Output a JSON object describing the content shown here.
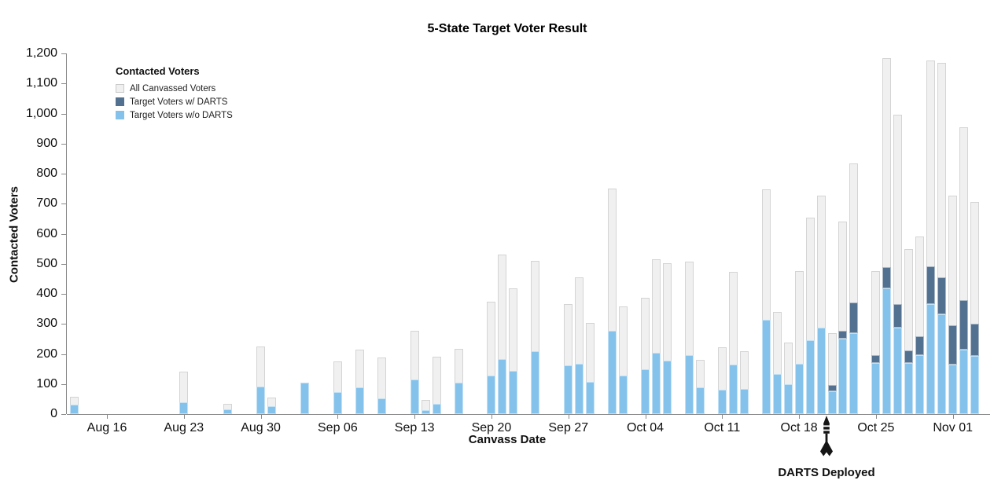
{
  "title": "5-State Target Voter Result",
  "legend": {
    "title": "Contacted Voters",
    "items": [
      {
        "label": "All Canvassed Voters",
        "color": "#f0f0f0",
        "border": "#c9c9c9"
      },
      {
        "label": "Target Voters w/ DARTS",
        "color": "#52708F",
        "border": "#52708F"
      },
      {
        "label": "Target Voters w/o DARTS",
        "color": "#85C2EB",
        "border": "#85C2EB"
      }
    ]
  },
  "y_axis": {
    "title": "Contacted Voters",
    "tick_values": [
      0,
      100,
      200,
      300,
      400,
      500,
      600,
      700,
      800,
      900,
      1000,
      1100,
      1200
    ]
  },
  "x_axis": {
    "title": "Canvass Date",
    "ticks": [
      {
        "day": 0,
        "label": "Aug 16"
      },
      {
        "day": 7,
        "label": "Aug 23"
      },
      {
        "day": 14,
        "label": "Aug 30"
      },
      {
        "day": 21,
        "label": "Sep 06"
      },
      {
        "day": 28,
        "label": "Sep 13"
      },
      {
        "day": 35,
        "label": "Sep 20"
      },
      {
        "day": 42,
        "label": "Sep 27"
      },
      {
        "day": 49,
        "label": "Oct 04"
      },
      {
        "day": 56,
        "label": "Oct 11"
      },
      {
        "day": 63,
        "label": "Oct 18"
      },
      {
        "day": 70,
        "label": "Oct 25"
      },
      {
        "day": 77,
        "label": "Nov 01"
      }
    ]
  },
  "annotation": {
    "label": "DARTS Deployed",
    "day": 65.5,
    "icon": "dart-icon"
  },
  "colors": {
    "all_canvassed_fill": "#f0f0f0",
    "all_canvassed_border": "#d4d4d4",
    "target_with_darts": "#52708F",
    "target_without_darts": "#85C2EB",
    "axis": "#8a8a8a"
  },
  "chart_data": {
    "type": "bar",
    "title": "5-State Target Voter Result",
    "xlabel": "Canvass Date",
    "ylabel": "Contacted Voters",
    "ylim": [
      0,
      1200
    ],
    "legend_position": "top-left",
    "grid": false,
    "series_names": [
      "All Canvassed Voters",
      "Target Voters w/ DARTS",
      "Target Voters w/o DARTS"
    ],
    "note": "all_canvassed drawn as background bar; target_without_darts stacked from 0; target_with_darts stacked on top of it",
    "bars": [
      {
        "date": "Aug 13",
        "day": -3,
        "all_canvassed": 58,
        "target_without_darts": 32,
        "target_with_darts": 0
      },
      {
        "date": "Aug 23",
        "day": 7,
        "all_canvassed": 140,
        "target_without_darts": 38,
        "target_with_darts": 0
      },
      {
        "date": "Aug 27",
        "day": 11,
        "all_canvassed": 33,
        "target_without_darts": 16,
        "target_with_darts": 0
      },
      {
        "date": "Aug 30",
        "day": 14,
        "all_canvassed": 225,
        "target_without_darts": 92,
        "target_with_darts": 0
      },
      {
        "date": "Aug 31",
        "day": 15,
        "all_canvassed": 55,
        "target_without_darts": 25,
        "target_with_darts": 0
      },
      {
        "date": "Sep 03",
        "day": 18,
        "all_canvassed": 105,
        "target_without_darts": 105,
        "target_with_darts": 0
      },
      {
        "date": "Sep 06",
        "day": 21,
        "all_canvassed": 176,
        "target_without_darts": 74,
        "target_with_darts": 0
      },
      {
        "date": "Sep 08",
        "day": 23,
        "all_canvassed": 215,
        "target_without_darts": 88,
        "target_with_darts": 0
      },
      {
        "date": "Sep 10",
        "day": 25,
        "all_canvassed": 187,
        "target_without_darts": 52,
        "target_with_darts": 0
      },
      {
        "date": "Sep 13",
        "day": 28,
        "all_canvassed": 278,
        "target_without_darts": 116,
        "target_with_darts": 0
      },
      {
        "date": "Sep 14",
        "day": 29,
        "all_canvassed": 47,
        "target_without_darts": 14,
        "target_with_darts": 0
      },
      {
        "date": "Sep 15",
        "day": 30,
        "all_canvassed": 190,
        "target_without_darts": 35,
        "target_with_darts": 0
      },
      {
        "date": "Sep 17",
        "day": 32,
        "all_canvassed": 216,
        "target_without_darts": 105,
        "target_with_darts": 0
      },
      {
        "date": "Sep 20",
        "day": 35,
        "all_canvassed": 374,
        "target_without_darts": 129,
        "target_with_darts": 0
      },
      {
        "date": "Sep 21",
        "day": 36,
        "all_canvassed": 532,
        "target_without_darts": 184,
        "target_with_darts": 0
      },
      {
        "date": "Sep 22",
        "day": 37,
        "all_canvassed": 417,
        "target_without_darts": 144,
        "target_with_darts": 0
      },
      {
        "date": "Sep 24",
        "day": 39,
        "all_canvassed": 510,
        "target_without_darts": 210,
        "target_with_darts": 0
      },
      {
        "date": "Sep 27",
        "day": 42,
        "all_canvassed": 366,
        "target_without_darts": 163,
        "target_with_darts": 0
      },
      {
        "date": "Sep 28",
        "day": 43,
        "all_canvassed": 456,
        "target_without_darts": 167,
        "target_with_darts": 0
      },
      {
        "date": "Sep 29",
        "day": 44,
        "all_canvassed": 303,
        "target_without_darts": 108,
        "target_with_darts": 0
      },
      {
        "date": "Oct 01",
        "day": 46,
        "all_canvassed": 750,
        "target_without_darts": 278,
        "target_with_darts": 0
      },
      {
        "date": "Oct 02",
        "day": 47,
        "all_canvassed": 358,
        "target_without_darts": 129,
        "target_with_darts": 0
      },
      {
        "date": "Oct 04",
        "day": 49,
        "all_canvassed": 388,
        "target_without_darts": 149,
        "target_with_darts": 0
      },
      {
        "date": "Oct 05",
        "day": 50,
        "all_canvassed": 514,
        "target_without_darts": 204,
        "target_with_darts": 0
      },
      {
        "date": "Oct 06",
        "day": 51,
        "all_canvassed": 503,
        "target_without_darts": 179,
        "target_with_darts": 0
      },
      {
        "date": "Oct 08",
        "day": 53,
        "all_canvassed": 508,
        "target_without_darts": 196,
        "target_with_darts": 0
      },
      {
        "date": "Oct 09",
        "day": 54,
        "all_canvassed": 180,
        "target_without_darts": 89,
        "target_with_darts": 0
      },
      {
        "date": "Oct 11",
        "day": 56,
        "all_canvassed": 222,
        "target_without_darts": 82,
        "target_with_darts": 0
      },
      {
        "date": "Oct 12",
        "day": 57,
        "all_canvassed": 473,
        "target_without_darts": 165,
        "target_with_darts": 0
      },
      {
        "date": "Oct 13",
        "day": 58,
        "all_canvassed": 208,
        "target_without_darts": 84,
        "target_with_darts": 0
      },
      {
        "date": "Oct 15",
        "day": 60,
        "all_canvassed": 749,
        "target_without_darts": 314,
        "target_with_darts": 0
      },
      {
        "date": "Oct 16",
        "day": 61,
        "all_canvassed": 340,
        "target_without_darts": 134,
        "target_with_darts": 0
      },
      {
        "date": "Oct 17",
        "day": 62,
        "all_canvassed": 239,
        "target_without_darts": 100,
        "target_with_darts": 0
      },
      {
        "date": "Oct 18",
        "day": 63,
        "all_canvassed": 476,
        "target_without_darts": 168,
        "target_with_darts": 0
      },
      {
        "date": "Oct 19",
        "day": 64,
        "all_canvassed": 654,
        "target_without_darts": 245,
        "target_with_darts": 0
      },
      {
        "date": "Oct 20",
        "day": 65,
        "all_canvassed": 727,
        "target_without_darts": 287,
        "target_with_darts": 0
      },
      {
        "date": "Oct 21",
        "day": 66,
        "all_canvassed": 268,
        "target_without_darts": 76,
        "target_with_darts": 21
      },
      {
        "date": "Oct 22",
        "day": 67,
        "all_canvassed": 640,
        "target_without_darts": 252,
        "target_with_darts": 24
      },
      {
        "date": "Oct 23",
        "day": 68,
        "all_canvassed": 833,
        "target_without_darts": 270,
        "target_with_darts": 100
      },
      {
        "date": "Oct 25",
        "day": 70,
        "all_canvassed": 475,
        "target_without_darts": 169,
        "target_with_darts": 26
      },
      {
        "date": "Oct 26",
        "day": 71,
        "all_canvassed": 1185,
        "target_without_darts": 418,
        "target_with_darts": 70
      },
      {
        "date": "Oct 27",
        "day": 72,
        "all_canvassed": 995,
        "target_without_darts": 287,
        "target_with_darts": 78
      },
      {
        "date": "Oct 28",
        "day": 73,
        "all_canvassed": 548,
        "target_without_darts": 169,
        "target_with_darts": 44
      },
      {
        "date": "Oct 29",
        "day": 74,
        "all_canvassed": 591,
        "target_without_darts": 196,
        "target_with_darts": 62
      },
      {
        "date": "Oct 30",
        "day": 75,
        "all_canvassed": 1176,
        "target_without_darts": 365,
        "target_with_darts": 126
      },
      {
        "date": "Oct 31",
        "day": 76,
        "all_canvassed": 1168,
        "target_without_darts": 333,
        "target_with_darts": 122
      },
      {
        "date": "Nov 01",
        "day": 77,
        "all_canvassed": 727,
        "target_without_darts": 165,
        "target_with_darts": 131
      },
      {
        "date": "Nov 02",
        "day": 78,
        "all_canvassed": 955,
        "target_without_darts": 214,
        "target_with_darts": 165
      },
      {
        "date": "Nov 03",
        "day": 79,
        "all_canvassed": 705,
        "target_without_darts": 194,
        "target_with_darts": 107
      }
    ]
  }
}
